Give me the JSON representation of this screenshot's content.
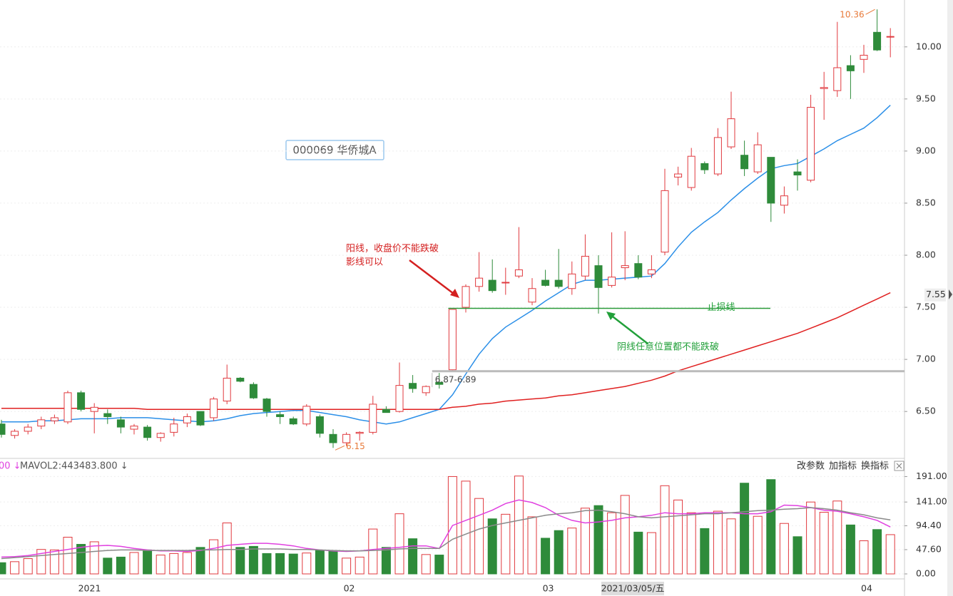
{
  "stock_label": "000069 华侨城A",
  "annotations": [
    {
      "text": "阳线，收盘价不能跌破"
    },
    {
      "text": "影线可以"
    },
    {
      "text": "阴线任意位置都不能跌破"
    }
  ],
  "toolbar": [
    "改参数",
    "加指标",
    "换指标"
  ],
  "chart_data": [
    {
      "type": "candlestick",
      "categories": [
        null,
        null,
        null,
        null,
        null,
        null,
        "2021",
        null,
        null,
        null,
        null,
        null,
        null,
        null,
        null,
        null,
        null,
        null,
        null,
        null,
        null,
        null,
        null,
        null,
        null,
        null,
        "02",
        null,
        null,
        null,
        null,
        null,
        null,
        null,
        null,
        null,
        null,
        null,
        null,
        null,
        null,
        "03",
        null,
        null,
        null,
        null,
        null,
        null,
        null,
        null,
        null,
        null,
        null,
        null,
        null,
        null,
        null,
        null,
        null,
        null,
        null,
        null,
        null,
        null,
        null,
        "04",
        null,
        null
      ],
      "crosshair_date": "2021/03/05/五",
      "open": [
        6.38,
        6.27,
        6.31,
        6.36,
        6.41,
        6.4,
        6.68,
        6.5,
        6.48,
        6.42,
        6.33,
        6.35,
        6.25,
        6.3,
        6.39,
        6.5,
        6.44,
        6.6,
        6.82,
        6.76,
        6.62,
        6.47,
        6.43,
        6.38,
        6.45,
        6.28,
        6.2,
        6.29,
        6.3,
        6.52,
        6.5,
        6.77,
        6.68,
        6.78,
        6.9,
        7.5,
        7.7,
        7.76,
        7.74,
        7.8,
        7.55,
        7.76,
        7.76,
        7.68,
        7.8,
        7.9,
        7.71,
        7.88,
        7.92,
        7.82,
        8.03,
        8.75,
        8.65,
        8.88,
        8.78,
        9.04,
        8.96,
        8.8,
        8.94,
        8.48,
        8.8,
        8.72,
        9.6,
        9.58,
        9.82,
        9.88,
        10.14,
        10.1
      ],
      "high": [
        6.42,
        6.33,
        6.38,
        6.45,
        6.47,
        6.7,
        6.7,
        6.58,
        6.52,
        6.45,
        6.38,
        6.37,
        6.3,
        6.44,
        6.48,
        6.5,
        6.64,
        6.95,
        6.83,
        6.78,
        6.63,
        6.5,
        6.45,
        6.57,
        6.47,
        6.33,
        6.3,
        6.31,
        6.65,
        6.55,
        6.97,
        6.85,
        6.75,
        6.87,
        7.48,
        7.72,
        8.03,
        7.96,
        7.88,
        8.27,
        7.78,
        7.86,
        8.06,
        7.94,
        8.2,
        8.0,
        8.22,
        8.23,
        8.0,
        8.0,
        8.83,
        8.85,
        9.03,
        8.9,
        9.22,
        9.57,
        9.1,
        9.18,
        8.94,
        8.66,
        8.92,
        9.54,
        9.76,
        10.24,
        9.92,
        10.02,
        10.36,
        10.18
      ],
      "low": [
        6.25,
        6.24,
        6.28,
        6.33,
        6.38,
        6.38,
        6.5,
        6.29,
        6.38,
        6.29,
        6.28,
        6.22,
        6.21,
        6.26,
        6.35,
        6.36,
        6.41,
        6.57,
        6.78,
        6.62,
        6.45,
        6.38,
        6.37,
        6.36,
        6.25,
        6.15,
        6.17,
        6.22,
        6.28,
        6.49,
        6.49,
        6.68,
        6.65,
        6.72,
        6.89,
        7.45,
        7.65,
        7.64,
        7.62,
        7.78,
        7.52,
        7.7,
        7.68,
        7.62,
        7.76,
        7.44,
        7.69,
        7.76,
        7.77,
        7.78,
        8.0,
        8.67,
        8.62,
        8.78,
        8.76,
        9.02,
        8.76,
        8.78,
        8.32,
        8.4,
        8.62,
        8.7,
        9.3,
        9.52,
        9.5,
        9.75,
        9.96,
        9.9
      ],
      "close": [
        6.28,
        6.31,
        6.35,
        6.42,
        6.44,
        6.68,
        6.52,
        6.54,
        6.45,
        6.35,
        6.36,
        6.25,
        6.29,
        6.38,
        6.45,
        6.37,
        6.62,
        6.82,
        6.79,
        6.63,
        6.5,
        6.45,
        6.38,
        6.55,
        6.29,
        6.2,
        6.28,
        6.3,
        6.57,
        6.49,
        6.75,
        6.72,
        6.74,
        6.76,
        7.48,
        7.7,
        7.78,
        7.66,
        7.74,
        7.86,
        7.68,
        7.71,
        7.7,
        7.82,
        7.99,
        7.69,
        7.79,
        7.9,
        7.79,
        7.86,
        8.62,
        8.78,
        8.95,
        8.82,
        9.13,
        9.31,
        8.83,
        9.06,
        8.5,
        8.57,
        8.77,
        9.42,
        9.61,
        9.8,
        9.77,
        9.92,
        9.97,
        10.1
      ],
      "up_color": "#e0393e",
      "down_color": "#2e8b3a",
      "series": [
        {
          "color": "#2b8fe8",
          "values": [
            6.4,
            6.4,
            6.4,
            6.41,
            6.41,
            6.42,
            6.43,
            6.43,
            6.43,
            6.44,
            6.44,
            6.44,
            6.43,
            6.42,
            6.41,
            6.4,
            6.41,
            6.43,
            6.46,
            6.48,
            6.49,
            6.5,
            6.51,
            6.51,
            6.49,
            6.47,
            6.45,
            6.42,
            6.4,
            6.38,
            6.4,
            6.44,
            6.48,
            6.52,
            6.66,
            6.86,
            7.05,
            7.2,
            7.31,
            7.39,
            7.47,
            7.56,
            7.64,
            7.72,
            7.76,
            7.76,
            7.77,
            7.78,
            7.79,
            7.8,
            7.92,
            8.08,
            8.22,
            8.32,
            8.41,
            8.53,
            8.64,
            8.74,
            8.83,
            8.86,
            8.88,
            8.95,
            9.02,
            9.1,
            9.16,
            9.22,
            9.32,
            9.44
          ]
        },
        {
          "color": "#e02020",
          "values": [
            6.53,
            6.53,
            6.53,
            6.53,
            6.53,
            6.53,
            6.53,
            6.53,
            6.53,
            6.53,
            6.53,
            6.52,
            6.52,
            6.52,
            6.52,
            6.52,
            6.52,
            6.52,
            6.52,
            6.52,
            6.52,
            6.52,
            6.52,
            6.52,
            6.52,
            6.52,
            6.52,
            6.52,
            6.52,
            6.52,
            6.52,
            6.52,
            6.52,
            6.52,
            6.54,
            6.55,
            6.57,
            6.58,
            6.6,
            6.61,
            6.62,
            6.63,
            6.65,
            6.66,
            6.68,
            6.7,
            6.72,
            6.74,
            6.77,
            6.8,
            6.84,
            6.89,
            6.93,
            6.97,
            7.01,
            7.05,
            7.09,
            7.13,
            7.17,
            7.21,
            7.25,
            7.3,
            7.35,
            7.4,
            7.46,
            7.52,
            7.58,
            7.64
          ]
        }
      ],
      "ylim": [
        6.07,
        10.45
      ],
      "yticks": [
        {
          "value": 6.5,
          "label": "6.50"
        },
        {
          "value": 7,
          "label": "7.00"
        },
        {
          "value": 7.5,
          "label": "7.50"
        },
        {
          "value": 8,
          "label": "8.00"
        },
        {
          "value": 8.5,
          "label": "8.50"
        },
        {
          "value": 9,
          "label": "9.00"
        },
        {
          "value": 9.5,
          "label": "9.50"
        },
        {
          "value": 10,
          "label": "10.00"
        }
      ],
      "grid": true,
      "last_price": 7.55,
      "gap": {
        "low": 6.87,
        "high": 6.89,
        "label": "6.87-6.89"
      },
      "stop_loss": {
        "value": 7.49,
        "label": "止损线"
      }
    },
    {
      "type": "bar",
      "header": [
        "00 ↓",
        "MAVOL2:443483.800 ↓"
      ],
      "values": [
        22,
        24,
        30,
        48,
        47,
        72,
        58,
        63,
        31,
        33,
        42,
        47,
        37,
        40,
        42,
        52,
        67,
        100,
        52,
        54,
        40,
        40,
        39,
        41,
        46,
        46,
        31,
        33,
        88,
        52,
        118,
        69,
        38,
        37,
        191,
        182,
        148,
        108,
        117,
        192,
        112,
        70,
        85,
        90,
        129,
        134,
        120,
        154,
        82,
        81,
        173,
        145,
        120,
        89,
        123,
        108,
        178,
        113,
        185,
        99,
        73,
        141,
        121,
        143,
        96,
        65,
        87,
        77
      ],
      "series": [
        {
          "color": "#e040e0",
          "values": [
            33,
            34,
            36,
            40,
            44,
            48,
            52,
            55,
            56,
            54,
            50,
            47,
            45,
            45,
            44,
            46,
            50,
            56,
            58,
            60,
            60,
            58,
            55,
            50,
            47,
            45,
            44,
            45,
            48,
            50,
            52,
            55,
            55,
            50,
            95,
            105,
            115,
            125,
            138,
            145,
            140,
            130,
            115,
            105,
            100,
            102,
            105,
            110,
            112,
            115,
            120,
            118,
            118,
            120,
            120,
            120,
            118,
            118,
            122,
            135,
            134,
            130,
            125,
            123,
            118,
            112,
            105,
            92
          ]
        },
        {
          "color": "#8a8a8a",
          "values": [
            30,
            32,
            34,
            36,
            38,
            40,
            42,
            44,
            46,
            47,
            47,
            46,
            46,
            46,
            46,
            47,
            47,
            48,
            48,
            49,
            49,
            49,
            48,
            48,
            47,
            46,
            45,
            45,
            46,
            47,
            49,
            50,
            50,
            50,
            68,
            78,
            88,
            95,
            100,
            105,
            110,
            115,
            118,
            120,
            124,
            125,
            122,
            118,
            112,
            110,
            112,
            114,
            116,
            118,
            118,
            120,
            122,
            124,
            125,
            127,
            128,
            130,
            128,
            125,
            120,
            116,
            110,
            106
          ]
        }
      ],
      "ylim": [
        0,
        200
      ],
      "yticks": [
        {
          "value": 0,
          "label": "0.00"
        },
        {
          "value": 47.6,
          "label": "47.60"
        },
        {
          "value": 94.4,
          "label": "94.40"
        },
        {
          "value": 141,
          "label": "141.00"
        },
        {
          "value": 191,
          "label": "191.00"
        }
      ]
    }
  ]
}
